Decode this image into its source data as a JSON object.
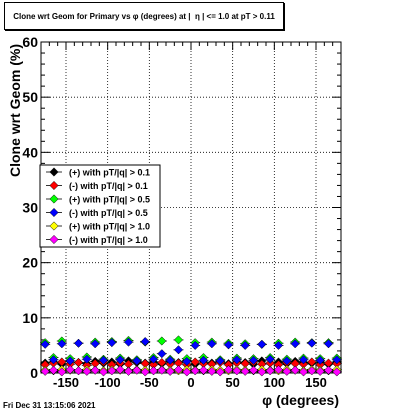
{
  "chart_data": {
    "type": "scatter",
    "title": "Clone wrt Geom for Primary vs φ (degrees) at |  η | <= 1.0 at pT > 0.11",
    "xlabel": "φ (degrees)",
    "ylabel": "Clone wrt Geom (%)",
    "xlim": [
      -180,
      180
    ],
    "ylim": [
      0,
      60
    ],
    "x_ticks": [
      -150,
      -100,
      -50,
      0,
      50,
      100,
      150
    ],
    "y_ticks": [
      0,
      10,
      20,
      30,
      40,
      50,
      60
    ],
    "grid": true,
    "legend_position": "middle-left",
    "x": [
      -175,
      -165,
      -155,
      -145,
      -135,
      -125,
      -115,
      -105,
      -95,
      -85,
      -75,
      -65,
      -55,
      -45,
      -35,
      -25,
      -15,
      -5,
      5,
      15,
      25,
      35,
      45,
      55,
      65,
      75,
      85,
      95,
      105,
      115,
      125,
      135,
      145,
      155,
      165,
      175
    ],
    "series": [
      {
        "name": "(+) with pT/|q| > 0.1",
        "color": "#000000",
        "values": [
          1.8,
          2.0,
          1.6,
          2.2,
          1.9,
          1.7,
          2.1,
          1.8,
          2.0,
          1.6,
          2.2,
          1.9,
          1.8,
          2.0,
          1.7,
          2.1,
          1.9,
          2.3,
          1.6,
          2.0,
          1.8,
          2.1,
          1.7,
          2.0,
          1.9,
          1.6,
          2.2,
          1.8,
          2.0,
          1.7,
          2.1,
          1.9,
          1.8,
          2.0,
          1.6,
          2.0
        ]
      },
      {
        "name": "(-) with pT/|q| > 0.1",
        "color": "#ff0000",
        "values": [
          1.5,
          1.8,
          2.0,
          1.6,
          1.9,
          1.4,
          1.7,
          2.0,
          1.5,
          1.8,
          1.6,
          2.1,
          1.7,
          1.5,
          1.9,
          1.6,
          1.8,
          1.5,
          2.0,
          1.7,
          1.6,
          1.9,
          1.5,
          1.8,
          1.7,
          2.0,
          1.6,
          1.8,
          1.5,
          1.9,
          1.7,
          1.6,
          2.0,
          1.5,
          1.8,
          1.7
        ]
      },
      {
        "name": "(+) with pT/|q| > 0.5",
        "color": "#00ff00",
        "values": [
          5.5,
          2.8,
          5.8,
          2.6,
          5.4,
          2.9,
          5.6,
          2.5,
          5.7,
          2.7,
          5.9,
          2.4,
          5.6,
          2.8,
          5.8,
          2.5,
          6.0,
          2.6,
          5.5,
          2.8,
          5.6,
          2.4,
          5.4,
          2.7,
          5.3,
          2.6,
          5.2,
          2.8,
          5.4,
          2.5,
          5.6,
          2.7,
          5.5,
          2.6,
          5.5,
          2.7
        ]
      },
      {
        "name": "(-) with pT/|q| > 0.5",
        "color": "#0000ff",
        "values": [
          5.2,
          2.4,
          5.3,
          2.2,
          5.4,
          2.5,
          5.3,
          2.3,
          5.5,
          2.4,
          5.6,
          2.2,
          5.7,
          2.5,
          3.5,
          2.3,
          4.2,
          2.1,
          5.0,
          2.3,
          5.3,
          2.2,
          5.1,
          2.4,
          5.0,
          2.3,
          5.2,
          2.5,
          5.0,
          2.2,
          5.3,
          2.4,
          5.4,
          2.3,
          5.3,
          2.4
        ]
      },
      {
        "name": "(+) with pT/|q| > 1.0",
        "color": "#ffff00",
        "values": [
          0.5,
          0.4,
          0.6,
          0.5,
          0.4,
          0.6,
          0.5,
          0.4,
          0.6,
          0.5,
          0.4,
          0.6,
          0.5,
          0.4,
          0.6,
          0.5,
          0.4,
          0.6,
          0.5,
          0.4,
          0.6,
          0.5,
          0.4,
          0.6,
          0.5,
          0.4,
          0.6,
          0.5,
          0.4,
          0.6,
          0.5,
          0.4,
          0.6,
          0.5,
          0.4,
          0.6
        ]
      },
      {
        "name": "(-) with pT/|q| > 1.0",
        "color": "#ff00ff",
        "values": [
          0.3,
          0.5,
          0.2,
          0.6,
          0.4,
          0.3,
          0.5,
          0.2,
          0.4,
          0.6,
          0.3,
          0.5,
          0.2,
          0.4,
          0.5,
          0.3,
          0.6,
          0.2,
          0.4,
          0.5,
          0.3,
          0.2,
          0.6,
          0.4,
          0.3,
          0.5,
          0.2,
          0.4,
          0.6,
          0.3,
          0.5,
          0.2,
          0.4,
          0.3,
          0.5,
          0.2
        ]
      }
    ]
  },
  "footer": {
    "timestamp": "Fri Dec 31 13:15:06 2021"
  }
}
